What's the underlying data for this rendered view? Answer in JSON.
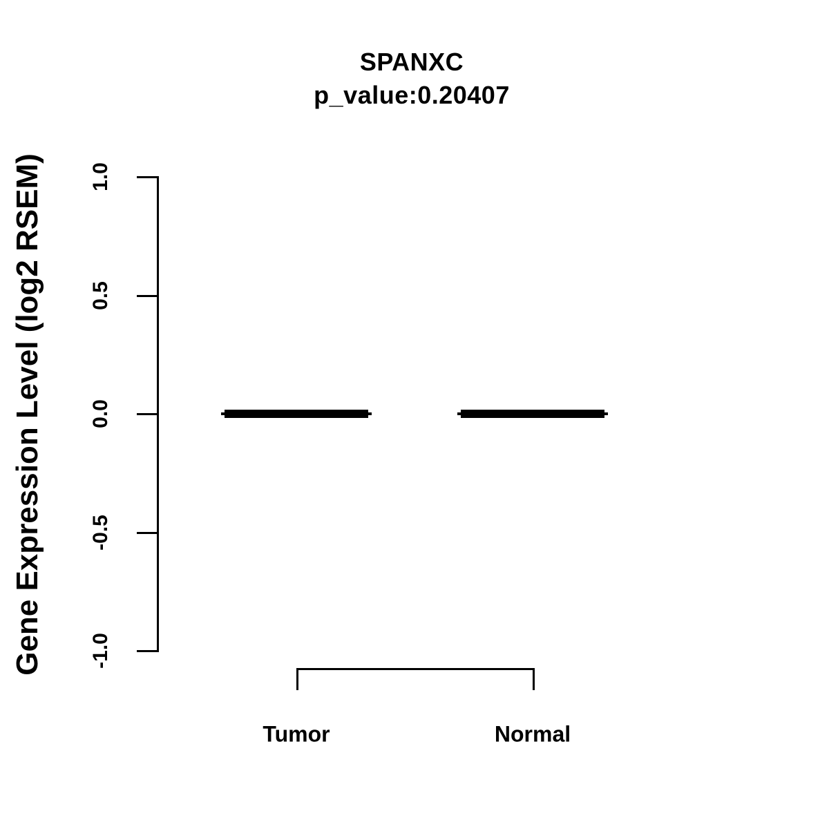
{
  "figure": {
    "background_color": "#ffffff",
    "foreground_color": "#000000"
  },
  "chart_data": {
    "type": "boxplot",
    "title": "SPANXC",
    "subtitle": "p_value:0.20407",
    "p_value": 0.20407,
    "gene": "SPANXC",
    "xlabel": "",
    "ylabel": "Gene Expression Level (log2 RSEM)",
    "categories": [
      "Tumor",
      "Normal"
    ],
    "series": [
      {
        "name": "Tumor",
        "median": 0.0,
        "q1": 0.0,
        "q3": 0.0,
        "whisker_low": 0.0,
        "whisker_high": 0.0
      },
      {
        "name": "Normal",
        "median": 0.0,
        "q1": 0.0,
        "q3": 0.0,
        "whisker_low": 0.0,
        "whisker_high": 0.0
      }
    ],
    "ylim": [
      -1.0,
      1.0
    ],
    "yticks": [
      1.0,
      0.5,
      0.0,
      -0.5,
      -1.0
    ],
    "ytick_labels": [
      "1.0",
      "0.5",
      "0.0",
      "-0.5",
      "-1.0"
    ],
    "grid": false,
    "legend": "none",
    "annotations": {
      "comparison_bracket_between": [
        "Tumor",
        "Normal"
      ]
    }
  }
}
